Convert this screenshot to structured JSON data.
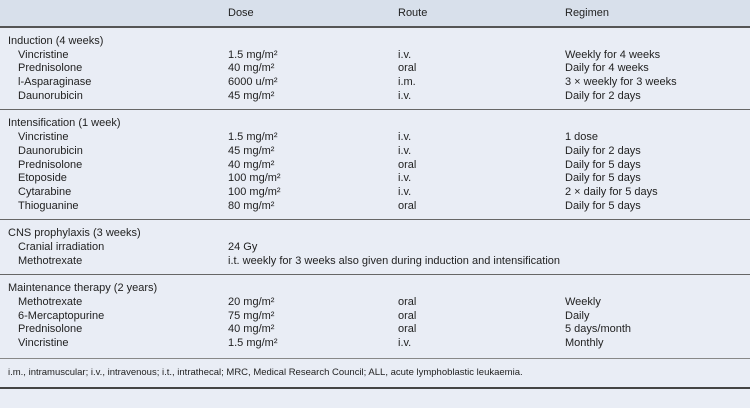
{
  "headers": [
    "",
    "Dose",
    "Route",
    "Regimen"
  ],
  "sections": [
    {
      "title": "Induction (4 weeks)",
      "rows": [
        [
          "Vincristine",
          "1.5 mg/m²",
          "i.v.",
          "Weekly for 4 weeks"
        ],
        [
          "Prednisolone",
          "40 mg/m²",
          "oral",
          "Daily for 4 weeks"
        ],
        [
          "l-Asparaginase",
          "6000 u/m²",
          "i.m.",
          "3 × weekly for 3 weeks"
        ],
        [
          "Daunorubicin",
          "45 mg/m²",
          "i.v.",
          "Daily for 2 days"
        ]
      ]
    },
    {
      "title": "Intensification (1 week)",
      "rows": [
        [
          "Vincristine",
          "1.5 mg/m²",
          "i.v.",
          "1 dose"
        ],
        [
          "Daunorubicin",
          "45 mg/m²",
          "i.v.",
          "Daily for 2 days"
        ],
        [
          "Prednisolone",
          "40 mg/m²",
          "oral",
          "Daily for 5 days"
        ],
        [
          "Etoposide",
          "100 mg/m²",
          "i.v.",
          "Daily for 5 days"
        ],
        [
          "Cytarabine",
          "100 mg/m²",
          "i.v.",
          "2 × daily for 5 days"
        ],
        [
          "Thioguanine",
          "80 mg/m²",
          "oral",
          "Daily for 5 days"
        ]
      ]
    },
    {
      "title": "CNS prophylaxis (3 weeks)",
      "rows": [
        [
          "Cranial irradiation",
          "24 Gy",
          "",
          ""
        ],
        [
          "Methotrexate",
          "i.t. weekly for 3 weeks also given during induction and intensification",
          "",
          ""
        ]
      ]
    },
    {
      "title": "Maintenance therapy (2 years)",
      "rows": [
        [
          "Methotrexate",
          "20 mg/m²",
          "oral",
          "Weekly"
        ],
        [
          "6-Mercaptopurine",
          "75 mg/m²",
          "oral",
          "Daily"
        ],
        [
          "Prednisolone",
          "40 mg/m²",
          "oral",
          "5 days/month"
        ],
        [
          "Vincristine",
          "1.5 mg/m²",
          "i.v.",
          "Monthly"
        ]
      ]
    }
  ],
  "footnote": "i.m., intramuscular; i.v., intravenous; i.t., intrathecal; MRC, Medical Research Council; ALL, acute lymphoblastic leukaemia."
}
